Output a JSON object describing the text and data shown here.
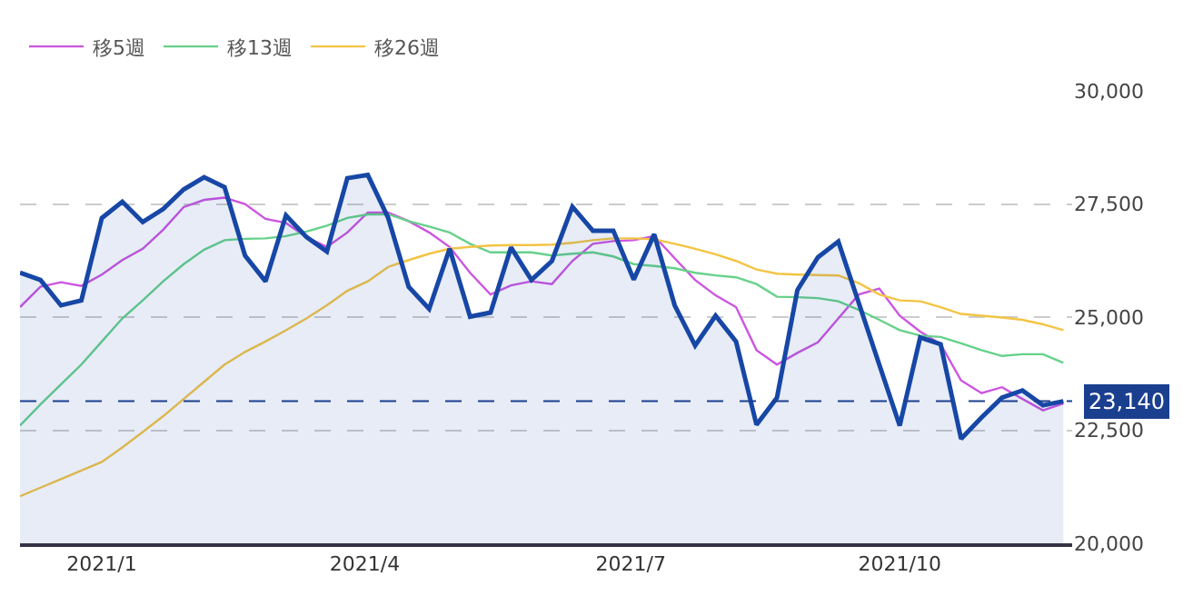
{
  "chart_data": {
    "type": "line",
    "x": [
      "2020-12-04",
      "2020-12-11",
      "2020-12-18",
      "2020-12-25",
      "2021-01-01",
      "2021-01-08",
      "2021-01-15",
      "2021-01-22",
      "2021-01-29",
      "2021-02-05",
      "2021-02-12",
      "2021-02-19",
      "2021-02-26",
      "2021-03-05",
      "2021-03-12",
      "2021-03-19",
      "2021-03-26",
      "2021-04-02",
      "2021-04-09",
      "2021-04-16",
      "2021-04-23",
      "2021-04-30",
      "2021-05-07",
      "2021-05-14",
      "2021-05-21",
      "2021-05-28",
      "2021-06-04",
      "2021-06-11",
      "2021-06-18",
      "2021-06-25",
      "2021-07-02",
      "2021-07-09",
      "2021-07-16",
      "2021-07-23",
      "2021-07-30",
      "2021-08-06",
      "2021-08-13",
      "2021-08-20",
      "2021-08-27",
      "2021-09-03",
      "2021-09-10",
      "2021-09-17",
      "2021-09-24",
      "2021-10-01",
      "2021-10-08",
      "2021-10-15",
      "2021-10-22",
      "2021-10-29",
      "2021-11-05",
      "2021-11-12",
      "2021-11-19",
      "2021-11-26"
    ],
    "series": [
      {
        "type": "area",
        "color": "#1747a6",
        "values": [
          25980,
          25820,
          25260,
          25370,
          27190,
          27550,
          27100,
          27390,
          27820,
          28090,
          27870,
          26360,
          25790,
          27250,
          26770,
          26450,
          28070,
          28140,
          27190,
          25670,
          25180,
          26510,
          25010,
          25100,
          26540,
          25820,
          26240,
          27440,
          26910,
          26910,
          25830,
          26830,
          25260,
          24370,
          25030,
          24460,
          22620,
          23220,
          25600,
          26320,
          26670,
          25310,
          23950,
          22600,
          24550,
          24400,
          22310,
          22780,
          23220,
          23380,
          23050,
          23140
        ]
      },
      {
        "name": "移5週",
        "type": "line",
        "color": "#cc55e0",
        "values": [
          25220,
          25670,
          25770,
          25690,
          25940,
          26260,
          26510,
          26930,
          27430,
          27590,
          27640,
          27500,
          27170,
          27080,
          26770,
          26550,
          26870,
          27310,
          27310,
          27120,
          26870,
          26550,
          25980,
          25500,
          25700,
          25790,
          25730,
          26240,
          26620,
          26680,
          26700,
          26790,
          26300,
          25820,
          25480,
          25220,
          24270,
          23950,
          24210,
          24440,
          24970,
          25500,
          25630,
          25030,
          24680,
          24400,
          23600,
          23320,
          23450,
          23190,
          22940,
          23090
        ]
      },
      {
        "name": "移13週",
        "type": "line",
        "color": "#66d18a",
        "values": [
          22600,
          23070,
          23510,
          23950,
          24460,
          24970,
          25370,
          25790,
          26170,
          26490,
          26700,
          26730,
          26740,
          26790,
          26890,
          27020,
          27190,
          27270,
          27270,
          27120,
          27000,
          26870,
          26620,
          26430,
          26430,
          26430,
          26360,
          26400,
          26430,
          26340,
          26170,
          26130,
          26080,
          25980,
          25920,
          25880,
          25730,
          25450,
          25440,
          25420,
          25350,
          25160,
          24940,
          24710,
          24590,
          24560,
          24420,
          24270,
          24140,
          24180,
          24180,
          23990
        ]
      },
      {
        "name": "移26週",
        "type": "line",
        "color": "#f3c444",
        "values": [
          21040,
          21230,
          21420,
          21610,
          21800,
          22120,
          22460,
          22810,
          23190,
          23570,
          23950,
          24230,
          24460,
          24710,
          24970,
          25260,
          25580,
          25790,
          26110,
          26260,
          26400,
          26510,
          26550,
          26580,
          26590,
          26590,
          26600,
          26640,
          26700,
          26740,
          26740,
          26720,
          26620,
          26510,
          26390,
          26240,
          26050,
          25960,
          25940,
          25930,
          25920,
          25750,
          25500,
          25370,
          25350,
          25220,
          25070,
          25030,
          24990,
          24940,
          24840,
          24710
        ]
      }
    ],
    "xlim": [
      "2020-12-04",
      "2021-11-29"
    ],
    "xticks": [
      {
        "value": "2021-01-01",
        "label": "2021/1"
      },
      {
        "value": "2021-04-01",
        "label": "2021/4"
      },
      {
        "value": "2021-07-01",
        "label": "2021/7"
      },
      {
        "value": "2021-10-01",
        "label": "2021/10"
      }
    ],
    "ylim": [
      20000,
      30000
    ],
    "yticks": [
      {
        "value": 20000,
        "label": "20,000"
      },
      {
        "value": 22500,
        "label": "22,500"
      },
      {
        "value": 25000,
        "label": "25,000"
      },
      {
        "value": 27500,
        "label": "27,500"
      },
      {
        "value": 30000,
        "label": "30,000"
      }
    ],
    "ref_lines": [
      {
        "axis": "y",
        "value": 23140,
        "label": "23,140",
        "color": "#1b3f8f",
        "line_style": "dashed"
      }
    ],
    "grid": "y",
    "legend": "top left",
    "marker": "none",
    "line_style": "solid"
  }
}
